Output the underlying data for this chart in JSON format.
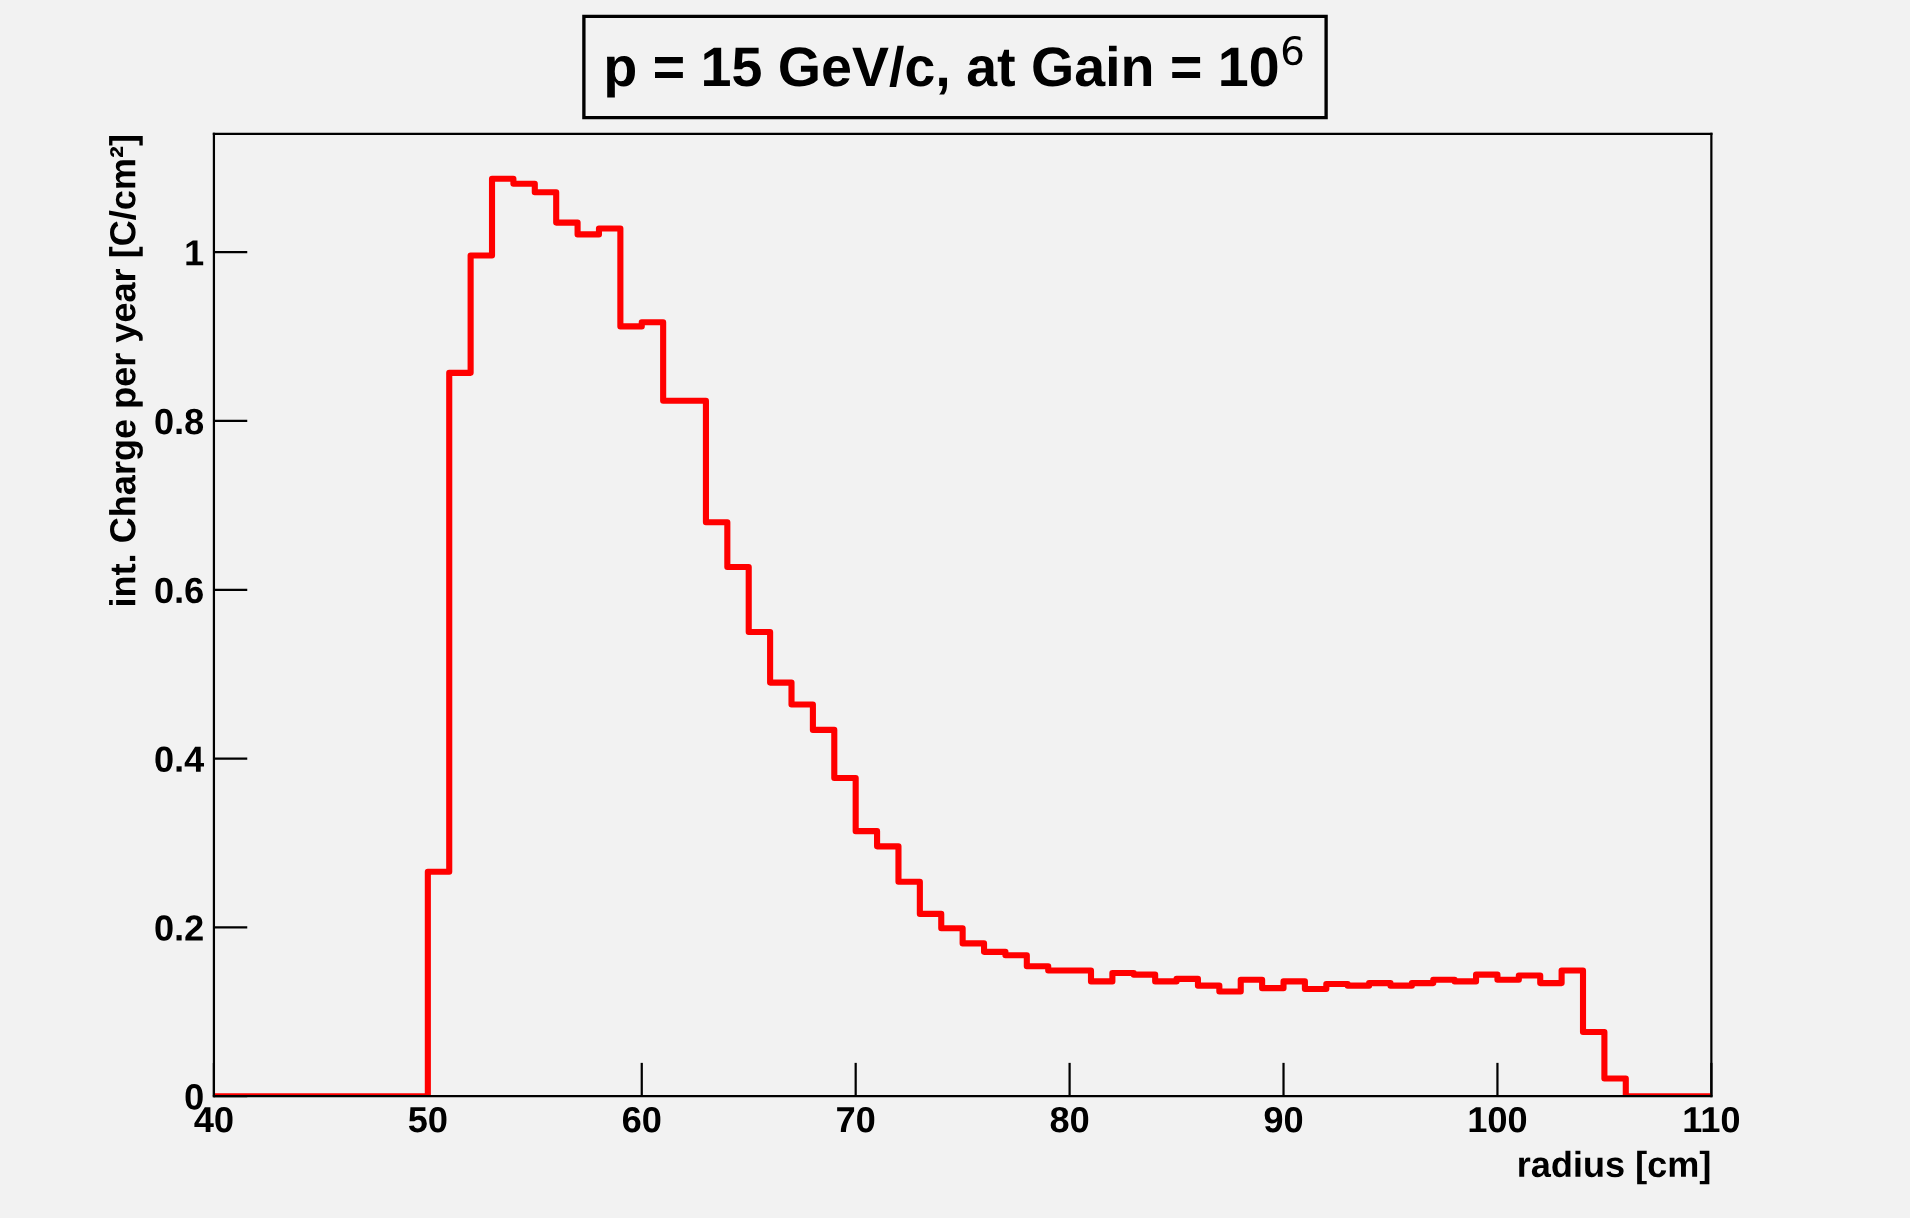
{
  "chart_data": {
    "type": "histogram",
    "title": "p = 15 GeV/c, at Gain = 10$^{6}$",
    "xlabel": "radius [cm]",
    "ylabel": "int. Charge per year [C/cm²]",
    "bins": [
      40,
      41,
      42,
      43,
      44,
      45,
      46,
      47,
      48,
      49,
      50,
      51,
      52,
      53,
      54,
      55,
      56,
      57,
      58,
      59,
      60,
      61,
      62,
      63,
      64,
      65,
      66,
      67,
      68,
      69,
      70,
      71,
      72,
      73,
      74,
      75,
      76,
      77,
      78,
      79,
      80,
      81,
      82,
      83,
      84,
      85,
      86,
      87,
      88,
      89,
      90,
      91,
      92,
      93,
      94,
      95,
      96,
      97,
      98,
      99,
      100,
      101,
      102,
      103,
      104,
      105,
      106,
      107,
      108,
      109,
      110
    ],
    "values": [
      0,
      0,
      0,
      0,
      0,
      0,
      0,
      0,
      0,
      0,
      0.266,
      0.857,
      0.996,
      1.087,
      1.081,
      1.071,
      1.035,
      1.021,
      1.028,
      0.912,
      0.917,
      0.824,
      0.824,
      0.68,
      0.627,
      0.55,
      0.49,
      0.464,
      0.434,
      0.377,
      0.314,
      0.296,
      0.254,
      0.216,
      0.199,
      0.181,
      0.171,
      0.167,
      0.154,
      0.149,
      0.149,
      0.136,
      0.146,
      0.144,
      0.136,
      0.139,
      0.131,
      0.124,
      0.138,
      0.128,
      0.136,
      0.127,
      0.133,
      0.131,
      0.134,
      0.131,
      0.134,
      0.138,
      0.136,
      0.144,
      0.138,
      0.143,
      0.134,
      0.149,
      0.076,
      0.021,
      0,
      0,
      0,
      0
    ],
    "color": "#ff0000",
    "xlim": [
      40,
      110
    ],
    "xticks": [
      40,
      50,
      60,
      70,
      80,
      90,
      100,
      110
    ],
    "ylim": [
      0,
      1.14
    ],
    "yticks": [
      0,
      0.2,
      0.4,
      0.6,
      0.8,
      1
    ],
    "grid": false,
    "legend": false
  }
}
